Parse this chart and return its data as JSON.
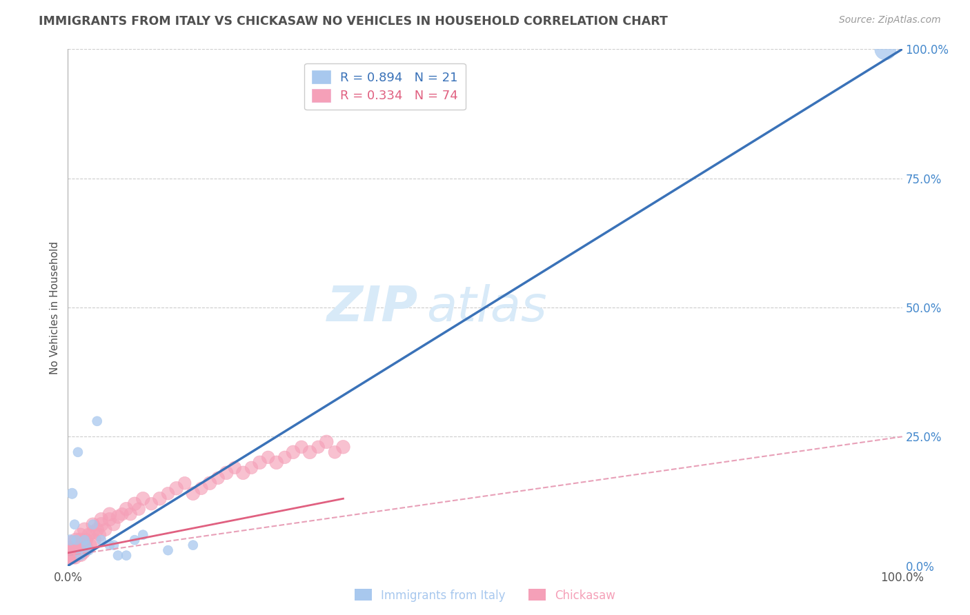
{
  "title": "IMMIGRANTS FROM ITALY VS CHICKASAW NO VEHICLES IN HOUSEHOLD CORRELATION CHART",
  "source_text": "Source: ZipAtlas.com",
  "ylabel": "No Vehicles in Household",
  "xlabel": "",
  "xlim": [
    0,
    100
  ],
  "ylim": [
    0,
    100
  ],
  "right_ytick_positions": [
    0,
    25,
    50,
    75,
    100
  ],
  "right_yticklabels": [
    "0.0%",
    "25.0%",
    "50.0%",
    "75.0%",
    "100.0%"
  ],
  "xtick_positions": [
    0,
    100
  ],
  "xticklabels": [
    "0.0%",
    "100.0%"
  ],
  "blue_R": 0.894,
  "blue_N": 21,
  "pink_R": 0.334,
  "pink_N": 74,
  "blue_color": "#A8C8EE",
  "blue_line_color": "#3A72B8",
  "pink_color": "#F5A0B8",
  "pink_line_color": "#E06080",
  "pink_dash_color": "#E8A0B8",
  "blue_scatter_x": [
    0.3,
    0.5,
    0.8,
    1.0,
    1.5,
    2.0,
    2.5,
    3.0,
    4.0,
    5.0,
    6.0,
    8.0,
    1.2,
    2.2,
    3.5,
    5.5,
    7.0,
    9.0,
    12.0,
    15.0,
    98.0
  ],
  "blue_scatter_y": [
    5.0,
    14.0,
    8.0,
    5.0,
    2.0,
    5.0,
    3.0,
    8.0,
    5.0,
    4.0,
    2.0,
    5.0,
    22.0,
    4.0,
    28.0,
    4.0,
    2.0,
    6.0,
    3.0,
    4.0,
    100.0
  ],
  "blue_scatter_size": [
    120,
    120,
    100,
    100,
    100,
    100,
    100,
    100,
    100,
    100,
    100,
    100,
    100,
    100,
    100,
    100,
    100,
    100,
    100,
    100,
    500
  ],
  "pink_scatter_x": [
    0.1,
    0.2,
    0.3,
    0.4,
    0.5,
    0.6,
    0.7,
    0.8,
    0.9,
    1.0,
    1.1,
    1.2,
    1.3,
    1.4,
    1.5,
    1.6,
    1.7,
    1.8,
    1.9,
    2.0,
    2.1,
    2.2,
    2.3,
    2.5,
    2.7,
    3.0,
    3.2,
    3.5,
    3.8,
    4.0,
    4.5,
    5.0,
    5.5,
    6.0,
    6.5,
    7.0,
    7.5,
    8.0,
    8.5,
    9.0,
    10.0,
    11.0,
    12.0,
    13.0,
    14.0,
    15.0,
    16.0,
    17.0,
    18.0,
    19.0,
    20.0,
    21.0,
    22.0,
    23.0,
    24.0,
    25.0,
    26.0,
    27.0,
    28.0,
    29.0,
    30.0,
    31.0,
    32.0,
    33.0,
    0.3,
    0.4,
    0.5,
    0.8,
    1.0,
    1.5,
    2.0,
    3.0,
    4.0,
    5.0
  ],
  "pink_scatter_y": [
    2.0,
    1.5,
    3.0,
    2.0,
    4.5,
    1.5,
    2.5,
    3.0,
    1.5,
    3.5,
    2.5,
    4.0,
    2.0,
    3.0,
    5.0,
    2.0,
    3.5,
    4.0,
    2.5,
    4.5,
    3.0,
    5.0,
    3.5,
    6.0,
    4.0,
    6.5,
    5.0,
    7.0,
    6.0,
    8.0,
    7.0,
    9.0,
    8.0,
    9.5,
    10.0,
    11.0,
    10.0,
    12.0,
    11.0,
    13.0,
    12.0,
    13.0,
    14.0,
    15.0,
    16.0,
    14.0,
    15.0,
    16.0,
    17.0,
    18.0,
    19.0,
    18.0,
    19.0,
    20.0,
    21.0,
    20.0,
    21.0,
    22.0,
    23.0,
    22.0,
    23.0,
    24.0,
    22.0,
    23.0,
    1.5,
    2.5,
    3.0,
    4.0,
    5.0,
    6.0,
    7.0,
    8.0,
    9.0,
    10.0
  ],
  "pink_scatter_size": [
    200,
    180,
    200,
    160,
    220,
    160,
    180,
    200,
    160,
    200,
    180,
    200,
    160,
    180,
    220,
    160,
    180,
    200,
    160,
    200,
    180,
    200,
    160,
    200,
    180,
    200,
    180,
    200,
    180,
    220,
    180,
    200,
    180,
    200,
    180,
    200,
    180,
    200,
    180,
    200,
    180,
    200,
    180,
    200,
    180,
    200,
    180,
    200,
    180,
    200,
    180,
    200,
    180,
    200,
    180,
    200,
    180,
    200,
    180,
    200,
    180,
    200,
    180,
    200,
    160,
    180,
    200,
    200,
    220,
    200,
    220,
    200,
    200,
    200
  ],
  "blue_line_x0": 0,
  "blue_line_y0": 0,
  "blue_line_x1": 100,
  "blue_line_y1": 100,
  "pink_solid_x0": 0,
  "pink_solid_y0": 2.5,
  "pink_solid_x1": 33,
  "pink_solid_y1": 13.0,
  "pink_dash_x0": 0,
  "pink_dash_y0": 2.0,
  "pink_dash_x1": 100,
  "pink_dash_y1": 25.0,
  "grid_color": "#CCCCCC",
  "background_color": "#FFFFFF",
  "title_color": "#505050",
  "legend_color_blue": "#3A72B8",
  "legend_color_pink": "#E06080",
  "watermark_color": "#D8EAF8"
}
